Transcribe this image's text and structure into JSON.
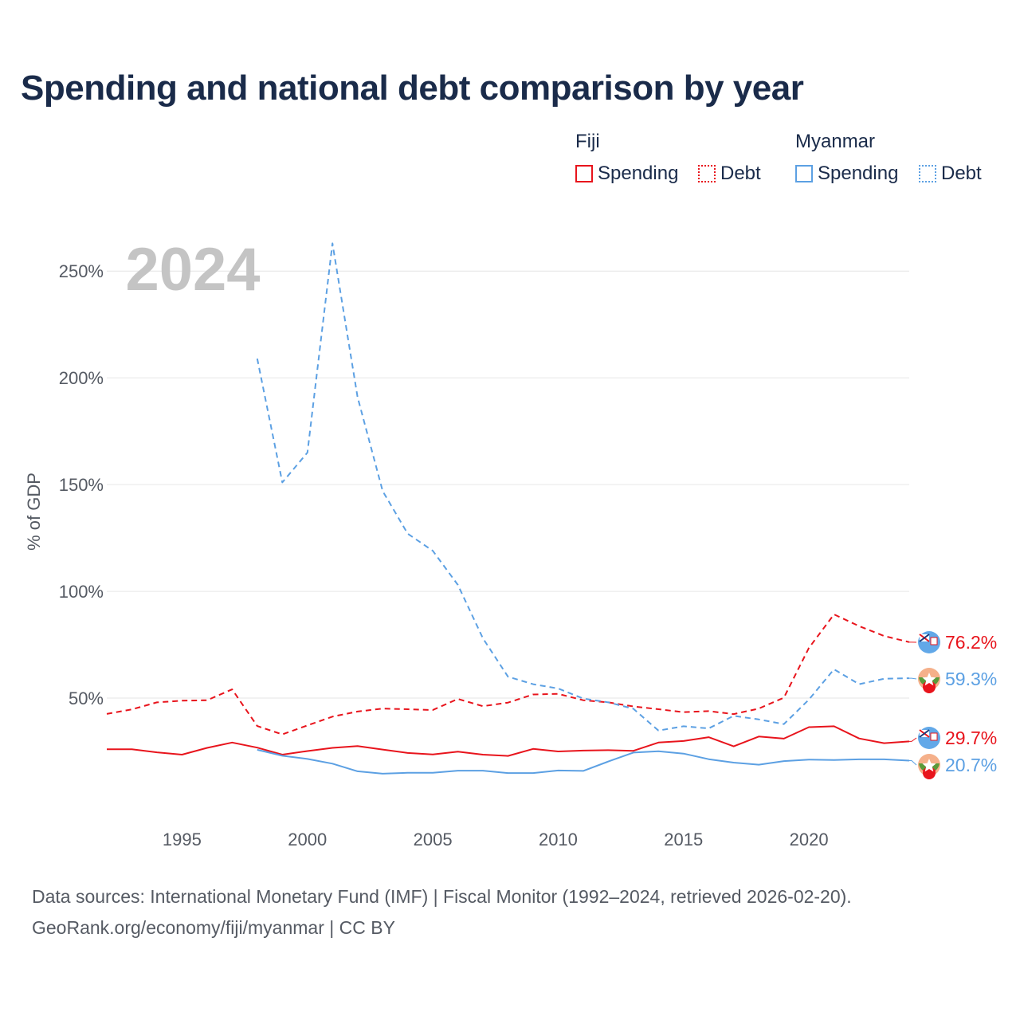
{
  "title": "Spending and national debt comparison by year",
  "legend": {
    "fiji": {
      "title": "Fiji",
      "spending": "Spending",
      "debt": "Debt"
    },
    "myanmar": {
      "title": "Myanmar",
      "spending": "Spending",
      "debt": "Debt"
    }
  },
  "footer": {
    "line1": "Data sources: International Monetary Fund (IMF) | Fiscal Monitor (1992–2024, retrieved 2026-02-20).",
    "line2": "GeoRank.org/economy/fiji/myanmar | CC BY"
  },
  "colors": {
    "fiji": "#e8141c",
    "myanmar": "#5ca0e3",
    "text": "#1a2b4a",
    "grid": "#e6e6e6",
    "year": "#c4c4c4"
  },
  "chart_data": {
    "type": "line",
    "title": "Spending and national debt comparison by year",
    "ylabel": "% of GDP",
    "xlabel": "",
    "ylim": [
      0,
      265
    ],
    "xlim": [
      1992,
      2024
    ],
    "yticks": [
      50,
      100,
      150,
      200,
      250
    ],
    "ytick_labels": [
      "50%",
      "100%",
      "150%",
      "200%",
      "250%"
    ],
    "xticks": [
      1995,
      2000,
      2005,
      2010,
      2015,
      2020
    ],
    "xtick_labels": [
      "1995",
      "2000",
      "2005",
      "2010",
      "2015",
      "2020"
    ],
    "year_label": "2024",
    "series": [
      {
        "name": "Fiji Spending",
        "country": "fiji",
        "style": "solid",
        "end_label": "29.7%",
        "x": [
          1992,
          1993,
          1994,
          1995,
          1996,
          1997,
          1998,
          1999,
          2000,
          2001,
          2002,
          2003,
          2004,
          2005,
          2006,
          2007,
          2008,
          2009,
          2010,
          2011,
          2012,
          2013,
          2014,
          2015,
          2016,
          2017,
          2018,
          2019,
          2020,
          2021,
          2022,
          2023,
          2024
        ],
        "values": [
          26,
          26,
          24.6,
          23.5,
          26.7,
          29.2,
          26.8,
          23.5,
          25.2,
          26.7,
          27.5,
          25.9,
          24.3,
          23.6,
          24.9,
          23.5,
          22.9,
          26.2,
          25,
          25.4,
          25.6,
          25.3,
          29.2,
          29.9,
          31.7,
          27.4,
          32,
          31,
          36.4,
          36.8,
          31.1,
          28.9,
          29.7
        ]
      },
      {
        "name": "Fiji Debt",
        "country": "fiji",
        "style": "dashed",
        "end_label": "76.2%",
        "x": [
          1992,
          1993,
          1994,
          1995,
          1996,
          1997,
          1998,
          1999,
          2000,
          2001,
          2002,
          2003,
          2004,
          2005,
          2006,
          2007,
          2008,
          2009,
          2010,
          2011,
          2012,
          2013,
          2014,
          2015,
          2016,
          2017,
          2018,
          2019,
          2020,
          2021,
          2022,
          2023,
          2024
        ],
        "values": [
          42.6,
          44.7,
          48,
          48.8,
          49,
          54.1,
          36.9,
          33,
          37.2,
          41.3,
          43.7,
          45.1,
          44.8,
          44.4,
          49.6,
          46.2,
          47.9,
          51.7,
          52,
          49,
          48,
          46.1,
          44.8,
          43.4,
          43.9,
          42.5,
          45.1,
          50.2,
          73.5,
          89.2,
          83.7,
          79.1,
          76.2
        ]
      },
      {
        "name": "Myanmar Spending",
        "country": "myanmar",
        "style": "solid",
        "end_label": "20.7%",
        "x": [
          1998,
          1999,
          2000,
          2001,
          2002,
          2003,
          2004,
          2005,
          2006,
          2007,
          2008,
          2009,
          2010,
          2011,
          2012,
          2013,
          2014,
          2015,
          2016,
          2017,
          2018,
          2019,
          2020,
          2021,
          2022,
          2023,
          2024
        ],
        "values": [
          25.8,
          23,
          21.5,
          19.3,
          15.7,
          14.6,
          15,
          15,
          16,
          16,
          14.9,
          14.9,
          16.1,
          15.9,
          20.3,
          24.5,
          25.1,
          24,
          21.4,
          19.8,
          18.8,
          20.5,
          21.2,
          21,
          21.3,
          21.3,
          20.7
        ]
      },
      {
        "name": "Myanmar Debt",
        "country": "myanmar",
        "style": "dashed",
        "end_label": "59.3%",
        "x": [
          1998,
          1999,
          2000,
          2001,
          2002,
          2003,
          2004,
          2005,
          2006,
          2007,
          2008,
          2009,
          2010,
          2011,
          2012,
          2013,
          2014,
          2015,
          2016,
          2017,
          2018,
          2019,
          2020,
          2021,
          2022,
          2023,
          2024
        ],
        "values": [
          209,
          151,
          165,
          263,
          191,
          147,
          127,
          119,
          103,
          78,
          60,
          56.5,
          54.5,
          49.8,
          48,
          45,
          34.8,
          36.8,
          35.8,
          41.7,
          40,
          37.8,
          49.3,
          63.5,
          56.5,
          59.1,
          59.3
        ]
      }
    ]
  }
}
